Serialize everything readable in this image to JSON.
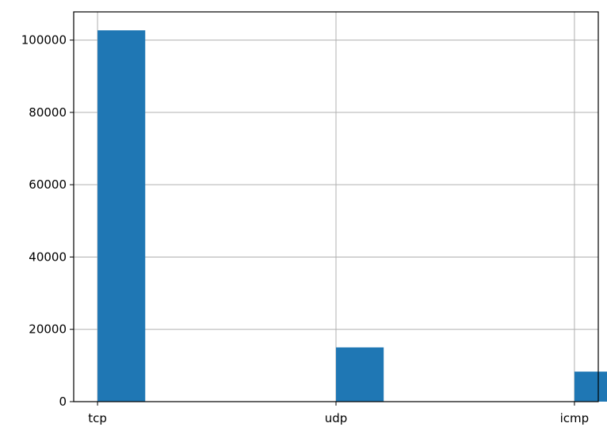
{
  "chart_data": {
    "type": "bar",
    "title": "",
    "xlabel": "",
    "ylabel": "",
    "categories": [
      "tcp",
      "udp",
      "icmp"
    ],
    "x_positions": [
      0,
      1.0,
      2.0
    ],
    "values": [
      102700,
      15000,
      8300
    ],
    "bin_width": 0.2,
    "xlim": [
      -0.1,
      2.1
    ],
    "ylim": [
      0,
      107800
    ],
    "yticks": [
      0,
      20000,
      40000,
      60000,
      80000,
      100000
    ],
    "ytick_labels": [
      "0",
      "20000",
      "40000",
      "60000",
      "80000",
      "100000"
    ],
    "grid": true,
    "legend": "none",
    "bar_color": "#1f77b4",
    "grid_color": "#b0b0b0"
  }
}
